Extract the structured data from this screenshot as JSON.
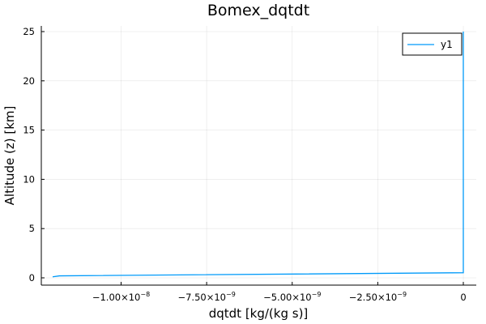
{
  "chart_data": {
    "type": "line",
    "title": "Bomex_dqtdt",
    "xlabel": "dqtdt [kg/(kg s)]",
    "ylabel": "Altitude (z) [km]",
    "xlim": [
      -1.2e-08,
      0.0
    ],
    "ylim": [
      0,
      25
    ],
    "x_ticks": [
      {
        "value": -1e-08,
        "mantissa": "−1.00×10",
        "exp": "−8"
      },
      {
        "value": -7.5e-09,
        "mantissa": "−7.50×10",
        "exp": "−9"
      },
      {
        "value": -5e-09,
        "mantissa": "−5.00×10",
        "exp": "−9"
      },
      {
        "value": -2.5e-09,
        "mantissa": "−2.50×10",
        "exp": "−9"
      },
      {
        "value": 0,
        "mantissa": "0",
        "exp": ""
      }
    ],
    "y_ticks": [
      0,
      5,
      10,
      15,
      20,
      25
    ],
    "grid": true,
    "legend": {
      "position": "top-right"
    },
    "series": [
      {
        "name": "y1",
        "color": "#009af9",
        "x": [
          -1.2e-08,
          -1.18e-08,
          0.0,
          0.0,
          0.0
        ],
        "y": [
          0.1,
          0.2,
          0.52,
          0.55,
          25.0
        ]
      }
    ]
  }
}
